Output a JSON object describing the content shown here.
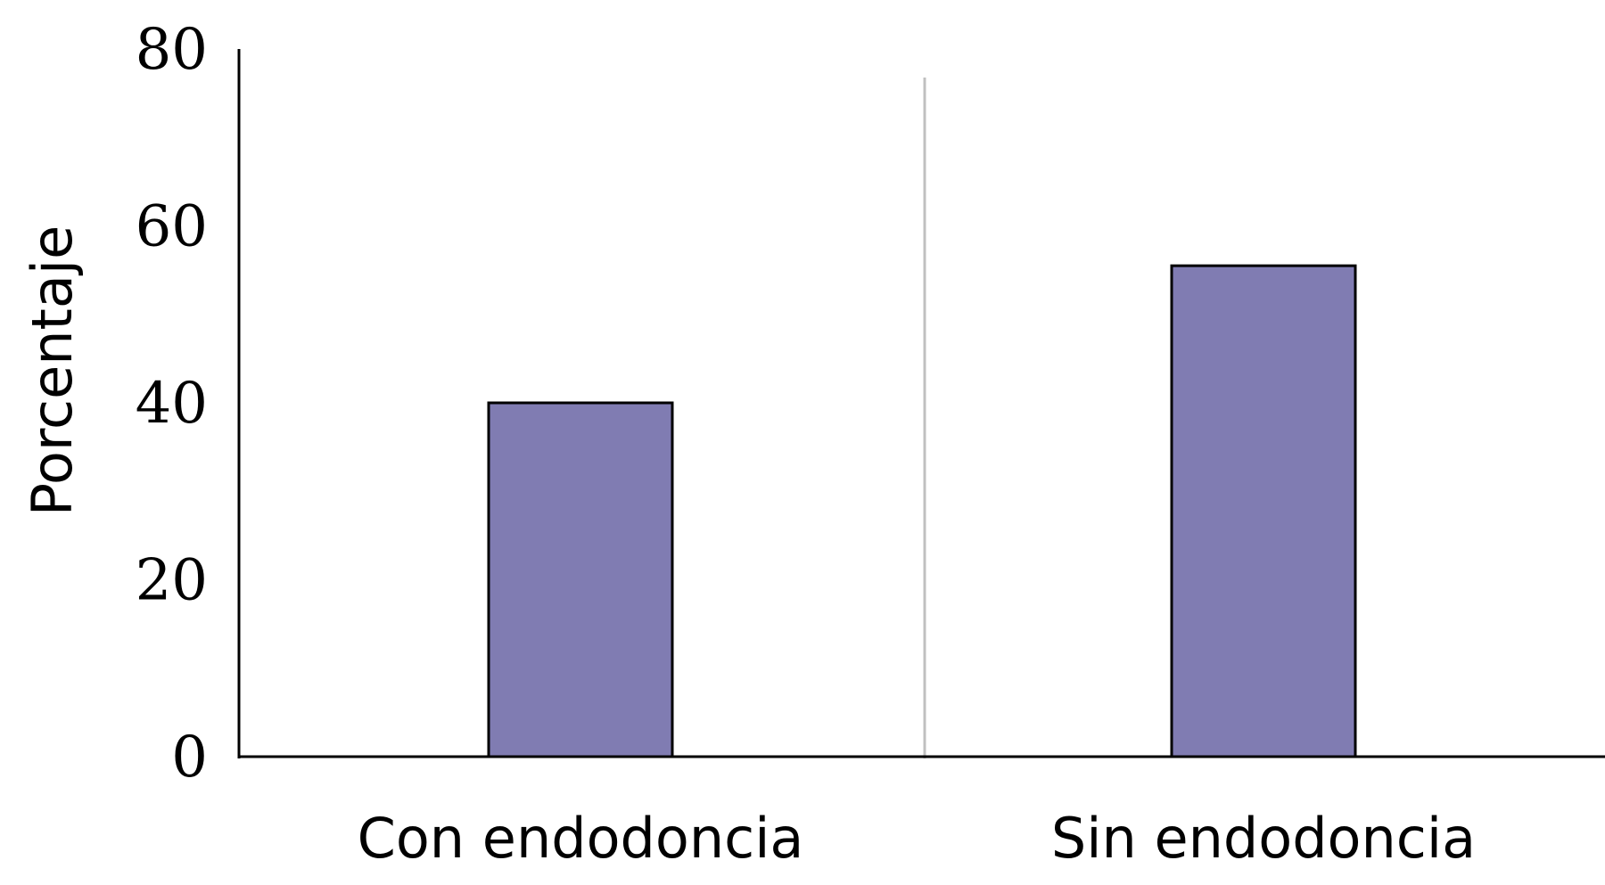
{
  "chart_data": {
    "type": "bar",
    "title": "",
    "xlabel": "",
    "ylabel": "Porcentaje",
    "categories": [
      "Con endodoncia",
      "Sin endodoncia"
    ],
    "values": [
      40,
      55.5
    ],
    "ylim": [
      0,
      80
    ],
    "yticks": [
      "0",
      "20",
      "40",
      "60",
      "80"
    ],
    "grid": false,
    "bar_color": "#807cb2",
    "bar_edge_color": "#000000",
    "divider_color": "#c0c0c0"
  }
}
